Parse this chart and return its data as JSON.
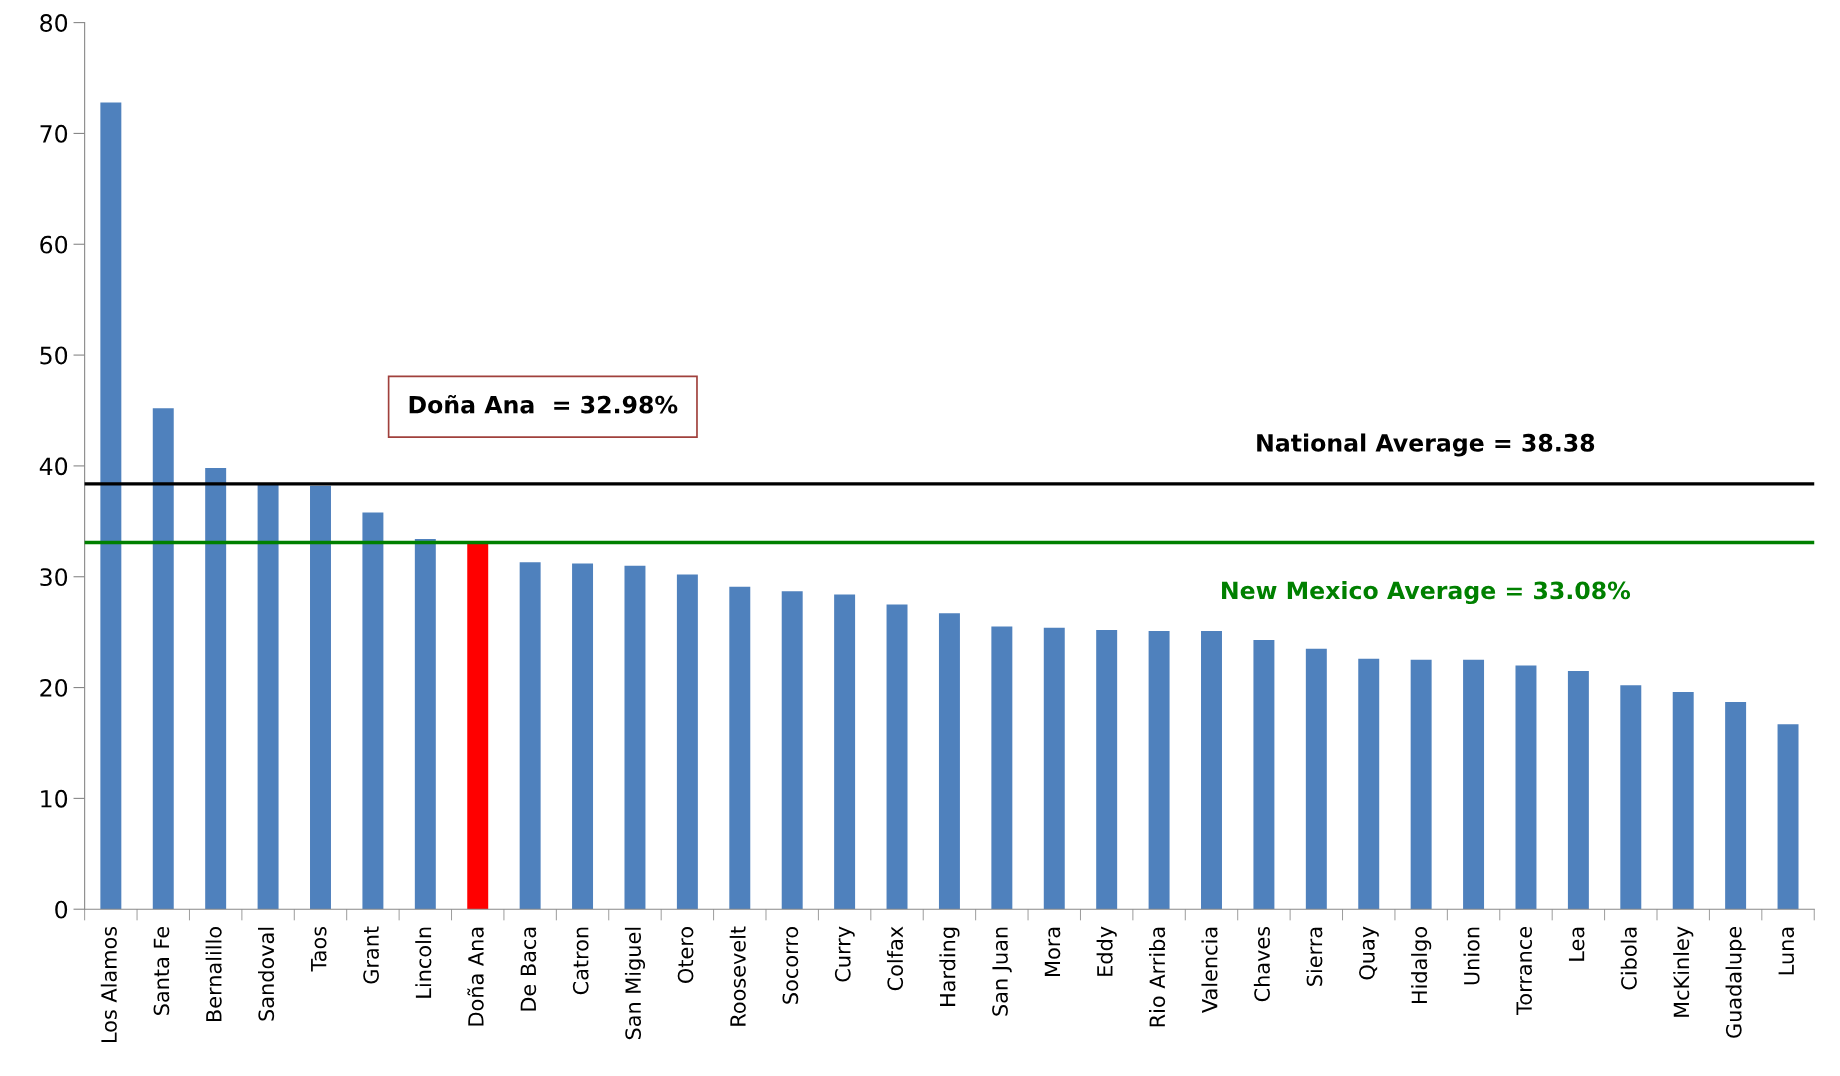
{
  "chart_data": {
    "type": "bar",
    "categories": [
      "Los Alamos",
      "Santa Fe",
      "Bernalillo",
      "Sandoval",
      "Taos",
      "Grant",
      "Lincoln",
      "Doña Ana",
      "De Baca",
      "Catron",
      "San Miguel",
      "Otero",
      "Roosevelt",
      "Socorro",
      "Curry",
      "Colfax",
      "Harding",
      "San Juan",
      "Mora",
      "Eddy",
      "Rio Arriba",
      "Valencia",
      "Chaves",
      "Sierra",
      "Quay",
      "Hidalgo",
      "Union",
      "Torrance",
      "Lea",
      "Cibola",
      "McKinley",
      "Guadalupe",
      "Luna"
    ],
    "values": [
      72.8,
      45.2,
      39.8,
      38.3,
      38.2,
      35.8,
      33.4,
      33.0,
      31.3,
      31.2,
      31.0,
      30.2,
      29.1,
      28.7,
      28.4,
      27.5,
      26.7,
      25.5,
      25.4,
      25.2,
      25.1,
      25.1,
      24.3,
      23.5,
      22.6,
      22.5,
      22.5,
      22.0,
      21.5,
      20.2,
      19.6,
      18.7,
      16.7
    ],
    "colors": [
      "#4f81bd",
      "#4f81bd",
      "#4f81bd",
      "#4f81bd",
      "#4f81bd",
      "#4f81bd",
      "#4f81bd",
      "#ff0000",
      "#4f81bd",
      "#4f81bd",
      "#4f81bd",
      "#4f81bd",
      "#4f81bd",
      "#4f81bd",
      "#4f81bd",
      "#4f81bd",
      "#4f81bd",
      "#4f81bd",
      "#4f81bd",
      "#4f81bd",
      "#4f81bd",
      "#4f81bd",
      "#4f81bd",
      "#4f81bd",
      "#4f81bd",
      "#4f81bd",
      "#4f81bd",
      "#4f81bd",
      "#4f81bd",
      "#4f81bd",
      "#4f81bd",
      "#4f81bd",
      "#4f81bd"
    ],
    "ylim": [
      0,
      80
    ],
    "yticks": [
      0,
      10,
      20,
      30,
      40,
      50,
      60,
      70,
      80
    ],
    "ref_lines": [
      {
        "axis": "y",
        "value": 38.38,
        "label": "National Average = 38.38",
        "color": "#000000"
      },
      {
        "axis": "y",
        "value": 33.08,
        "label": "New Mexico Average = 33.08%",
        "color": "#008000"
      }
    ],
    "annotations": [
      "Doña Ana  = 32.98%"
    ],
    "grid": false,
    "legend": false
  }
}
